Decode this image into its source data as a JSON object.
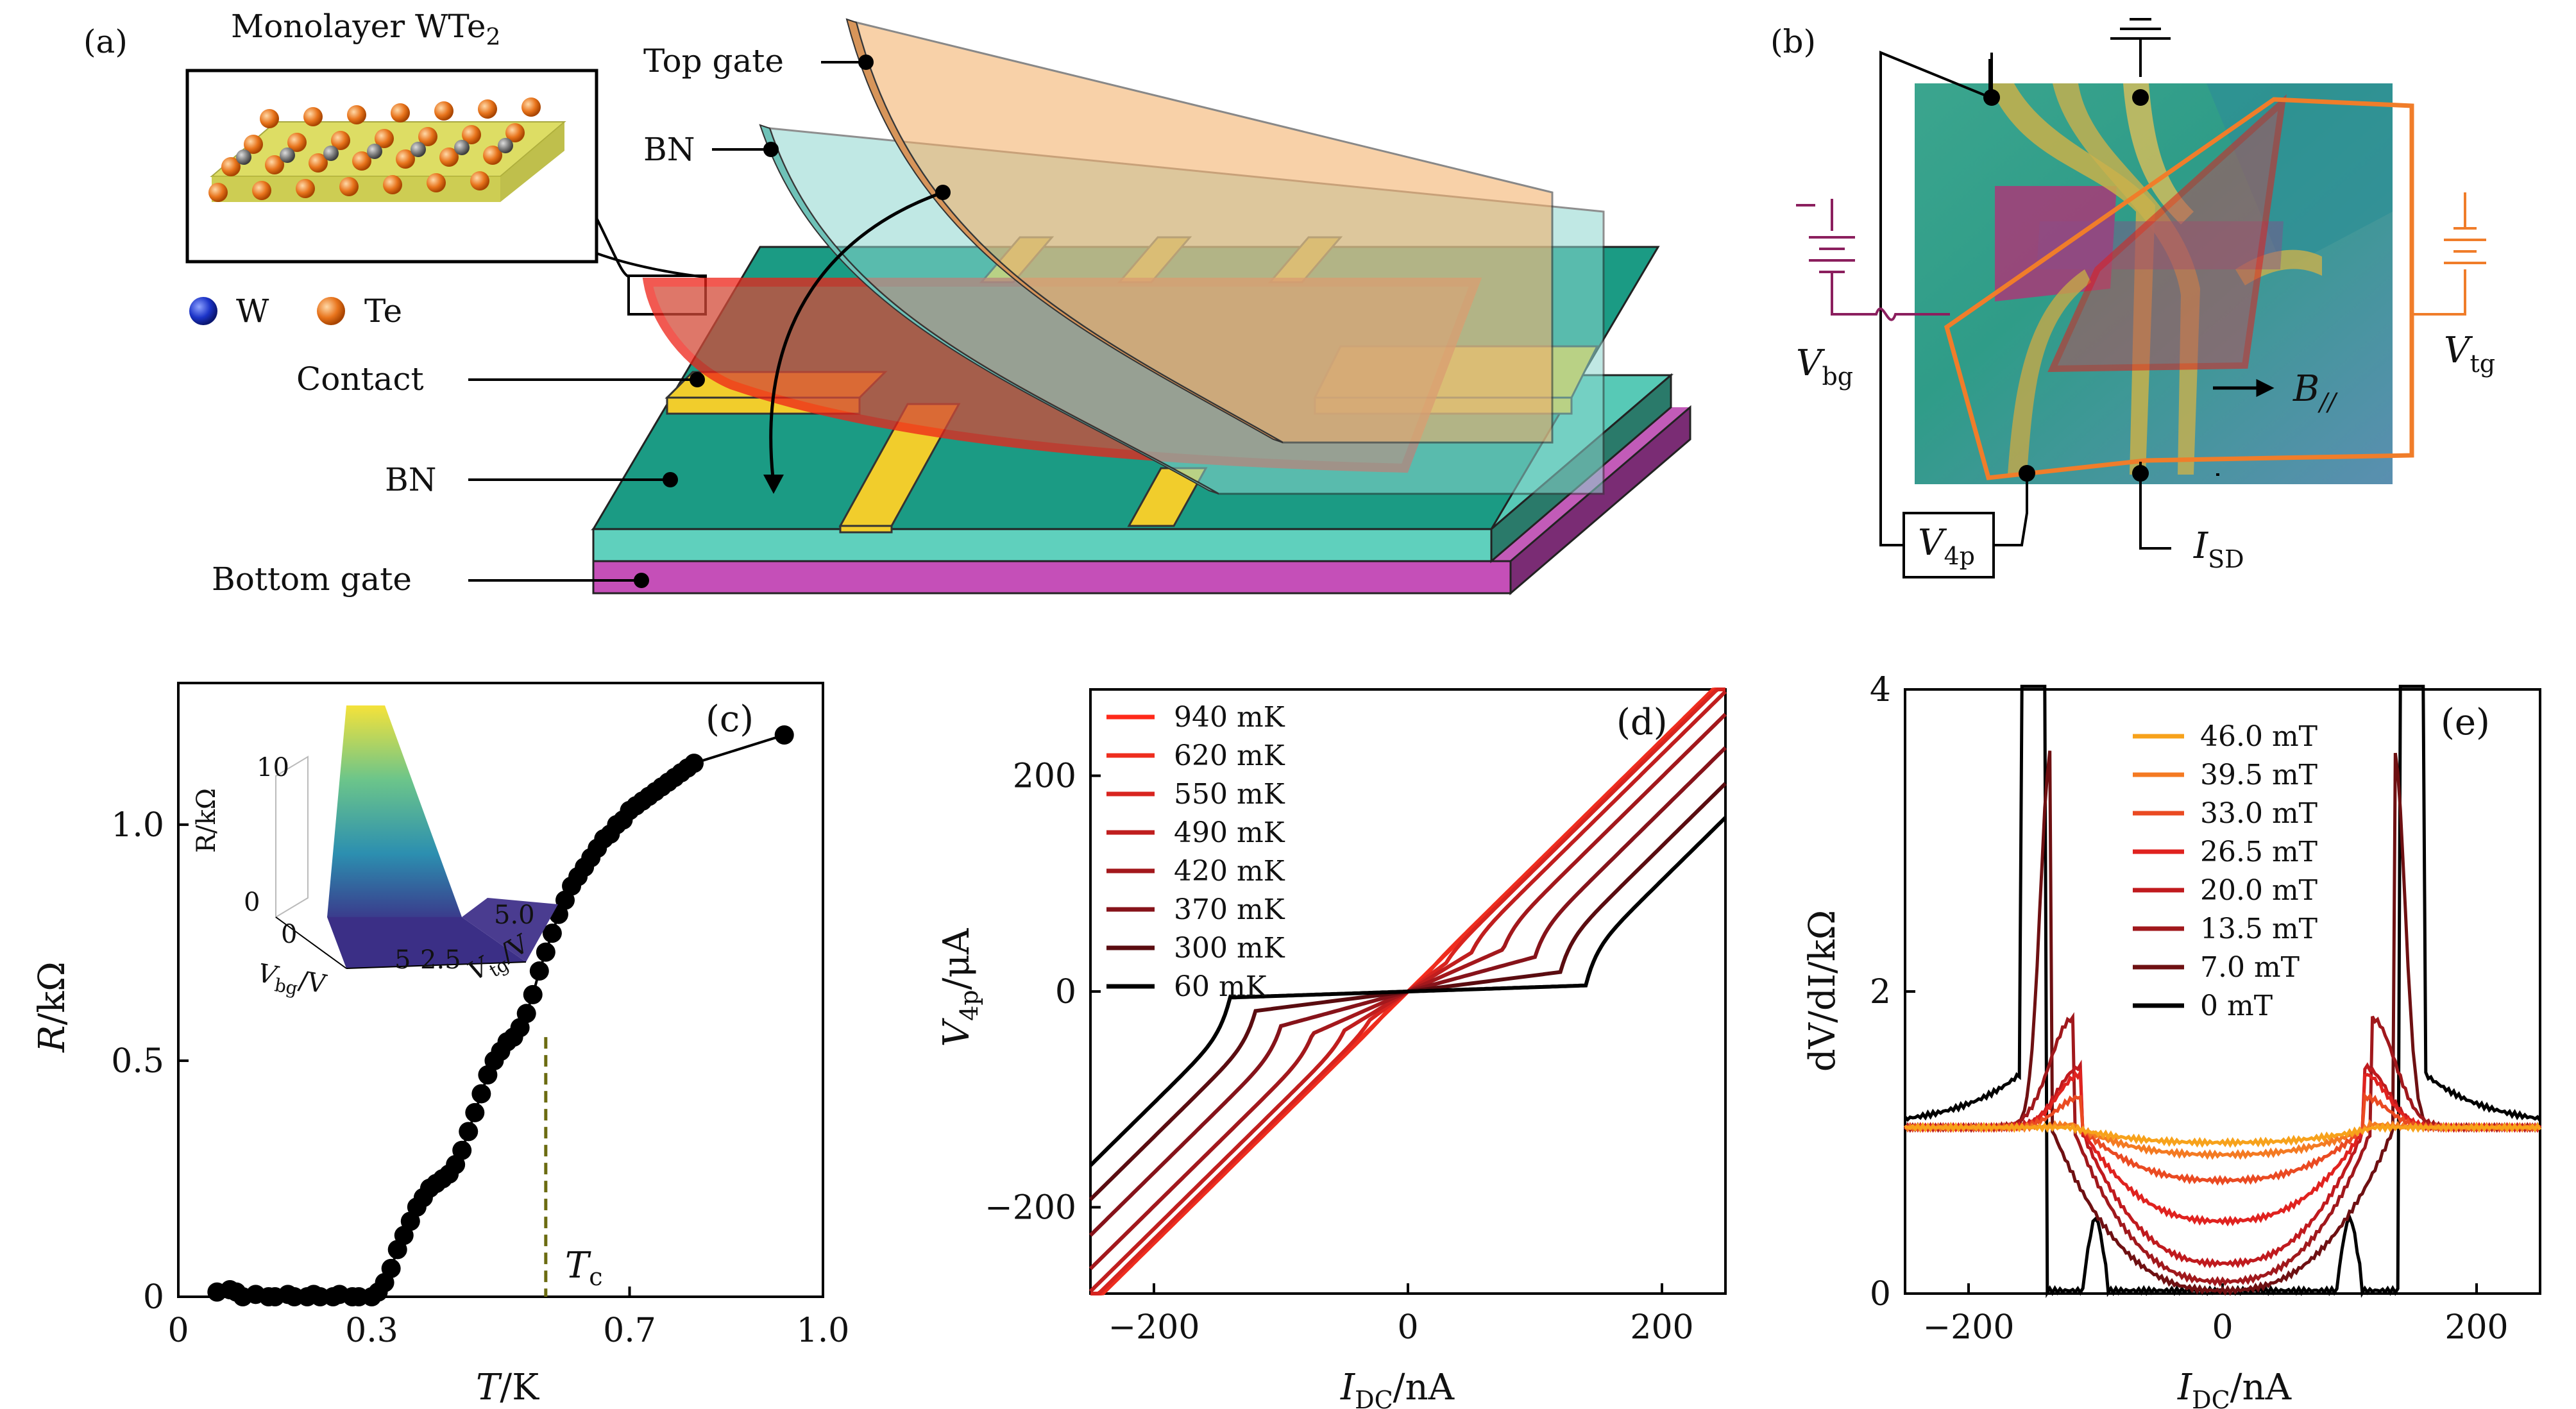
{
  "panels": {
    "a": "(a)",
    "b": "(b)",
    "c": "(c)",
    "d": "(d)",
    "e": "(e)"
  },
  "panel_a": {
    "title_prefix": "Monolayer WTe",
    "title_sub": "2",
    "legend_w": "W",
    "legend_te": "Te",
    "labels": {
      "top_gate": "Top gate",
      "bn_top": "BN",
      "contact": "Contact",
      "bn_bottom": "BN",
      "bottom_gate": "Bottom gate"
    },
    "colors": {
      "top_gate": "#f5b16e",
      "bn": "#8ed8cf",
      "substrate": "#1a9a82",
      "bottom_gate": "#b04aa8",
      "contact": "#f2cc2a",
      "flake": "#e8221f"
    }
  },
  "panel_b": {
    "vbg": "V",
    "vbg_sub": "bg",
    "vtg": "V",
    "vtg_sub": "tg",
    "v4p": "V",
    "v4p_sub": "4p",
    "isd": "I",
    "isd_sub": "SD",
    "b": "B",
    "b_sub": "//"
  },
  "chart_data": [
    {
      "panel": "c",
      "type": "scatter",
      "xlabel_var": "T",
      "xlabel_unit": "/K",
      "ylabel_var": "R",
      "ylabel_unit": "/kΩ",
      "xlim": [
        0,
        1.0
      ],
      "ylim": [
        0,
        1.3
      ],
      "xticks": [
        "0",
        "0.3",
        "0.7",
        "1.0"
      ],
      "xtick_values": [
        0,
        0.3,
        0.7,
        1.0
      ],
      "yticks": [
        "0",
        "0.5",
        "1.0"
      ],
      "ytick_values": [
        0,
        0.5,
        1.0
      ],
      "tc_label": "T",
      "tc_sub": "c",
      "tc_value": 0.57,
      "x": [
        0.06,
        0.08,
        0.09,
        0.1,
        0.12,
        0.14,
        0.15,
        0.17,
        0.18,
        0.2,
        0.21,
        0.22,
        0.24,
        0.25,
        0.27,
        0.28,
        0.3,
        0.31,
        0.32,
        0.33,
        0.34,
        0.35,
        0.36,
        0.37,
        0.38,
        0.39,
        0.4,
        0.41,
        0.42,
        0.43,
        0.44,
        0.45,
        0.46,
        0.47,
        0.48,
        0.49,
        0.5,
        0.51,
        0.52,
        0.53,
        0.54,
        0.55,
        0.56,
        0.57,
        0.58,
        0.59,
        0.6,
        0.61,
        0.62,
        0.63,
        0.64,
        0.65,
        0.66,
        0.67,
        0.68,
        0.69,
        0.7,
        0.71,
        0.72,
        0.73,
        0.74,
        0.75,
        0.76,
        0.77,
        0.78,
        0.79,
        0.8,
        0.94
      ],
      "y": [
        0.01,
        0.015,
        0.01,
        0.0,
        0.005,
        0.0,
        0.0,
        0.005,
        0.0,
        0.0,
        0.005,
        0.0,
        0.0,
        0.005,
        0.0,
        0.0,
        0.0,
        0.01,
        0.03,
        0.06,
        0.1,
        0.13,
        0.16,
        0.19,
        0.21,
        0.23,
        0.24,
        0.25,
        0.26,
        0.28,
        0.31,
        0.35,
        0.39,
        0.43,
        0.47,
        0.5,
        0.52,
        0.54,
        0.55,
        0.57,
        0.6,
        0.64,
        0.69,
        0.73,
        0.77,
        0.81,
        0.84,
        0.87,
        0.89,
        0.91,
        0.93,
        0.95,
        0.97,
        0.98,
        1.0,
        1.01,
        1.03,
        1.04,
        1.05,
        1.06,
        1.07,
        1.08,
        1.09,
        1.1,
        1.11,
        1.12,
        1.13,
        1.19
      ],
      "inset": {
        "zlabel": "R/kΩ",
        "zticks": [
          "0",
          "10"
        ],
        "xlabel": "V",
        "xlabel_sub": "bg",
        "xlabel_unit": "/V",
        "xticks": [
          "0",
          "5"
        ],
        "ylabel": "V",
        "ylabel_sub": "tg",
        "ylabel_unit": "/V",
        "yticks": [
          "2.5",
          "5.0"
        ]
      }
    },
    {
      "panel": "d",
      "type": "line",
      "xlabel_var": "I",
      "xlabel_sub": "DC",
      "xlabel_unit": "/nA",
      "ylabel_var": "V",
      "ylabel_sub": "4p",
      "ylabel_unit": "/μA",
      "xlim": [
        -250,
        250
      ],
      "ylim": [
        -280,
        280
      ],
      "xticks": [
        "−200",
        "0",
        "200"
      ],
      "xtick_values": [
        -200,
        0,
        200
      ],
      "yticks": [
        "−200",
        "0",
        "200"
      ],
      "ytick_values": [
        -200,
        0,
        200
      ],
      "series": [
        {
          "name": "940 mK",
          "color": "#ff2a1a",
          "ic": 0,
          "plateau": 1.16
        },
        {
          "name": "620 mK",
          "color": "#ee2d1e",
          "ic": 15,
          "plateau": 1.05
        },
        {
          "name": "550 mK",
          "color": "#d8241f",
          "ic": 30,
          "plateau": 0.88
        },
        {
          "name": "490 mK",
          "color": "#c01e1e",
          "ic": 50,
          "plateau": 0.72
        },
        {
          "name": "420 mK",
          "color": "#a3181c",
          "ic": 75,
          "plateau": 0.52
        },
        {
          "name": "370 mK",
          "color": "#86131a",
          "ic": 100,
          "plateau": 0.32
        },
        {
          "name": "300 mK",
          "color": "#5a0c10",
          "ic": 120,
          "plateau": 0.15
        },
        {
          "name": "60 mK",
          "color": "#000000",
          "ic": 140,
          "plateau": 0.04
        }
      ]
    },
    {
      "panel": "e",
      "type": "line",
      "xlabel_var": "I",
      "xlabel_sub": "DC",
      "xlabel_unit": "/nA",
      "ylabel_text": "dV/dI/kΩ",
      "xlim": [
        -250,
        250
      ],
      "ylim": [
        0,
        4
      ],
      "xticks": [
        "−200",
        "0",
        "200"
      ],
      "xtick_values": [
        -200,
        0,
        200
      ],
      "yticks": [
        "0",
        "2",
        "4"
      ],
      "ytick_values": [
        0,
        2,
        4
      ],
      "series": [
        {
          "name": "46.0 mT",
          "color": "#f7a21b",
          "dip": 1.0,
          "peak": 1.1,
          "pw": 120
        },
        {
          "name": "39.5 mT",
          "color": "#f47a22",
          "dip": 0.92,
          "peak": 1.12,
          "pw": 115
        },
        {
          "name": "33.0 mT",
          "color": "#ea4a22",
          "dip": 0.75,
          "peak": 1.3,
          "pw": 112
        },
        {
          "name": "26.5 mT",
          "color": "#e0221f",
          "dip": 0.48,
          "peak": 1.45,
          "pw": 112
        },
        {
          "name": "20.0 mT",
          "color": "#c01a1e",
          "dip": 0.2,
          "peak": 1.5,
          "pw": 112
        },
        {
          "name": "13.5 mT",
          "color": "#a0181c",
          "dip": 0.08,
          "peak": 1.82,
          "pw": 118
        },
        {
          "name": "7.0 mT",
          "color": "#6e1012",
          "dip": 0.02,
          "peak": 3.6,
          "pw": 135
        },
        {
          "name": "0 mT",
          "color": "#000000",
          "dip": 0.0,
          "peak": 4.6,
          "pw": 155
        }
      ]
    }
  ]
}
